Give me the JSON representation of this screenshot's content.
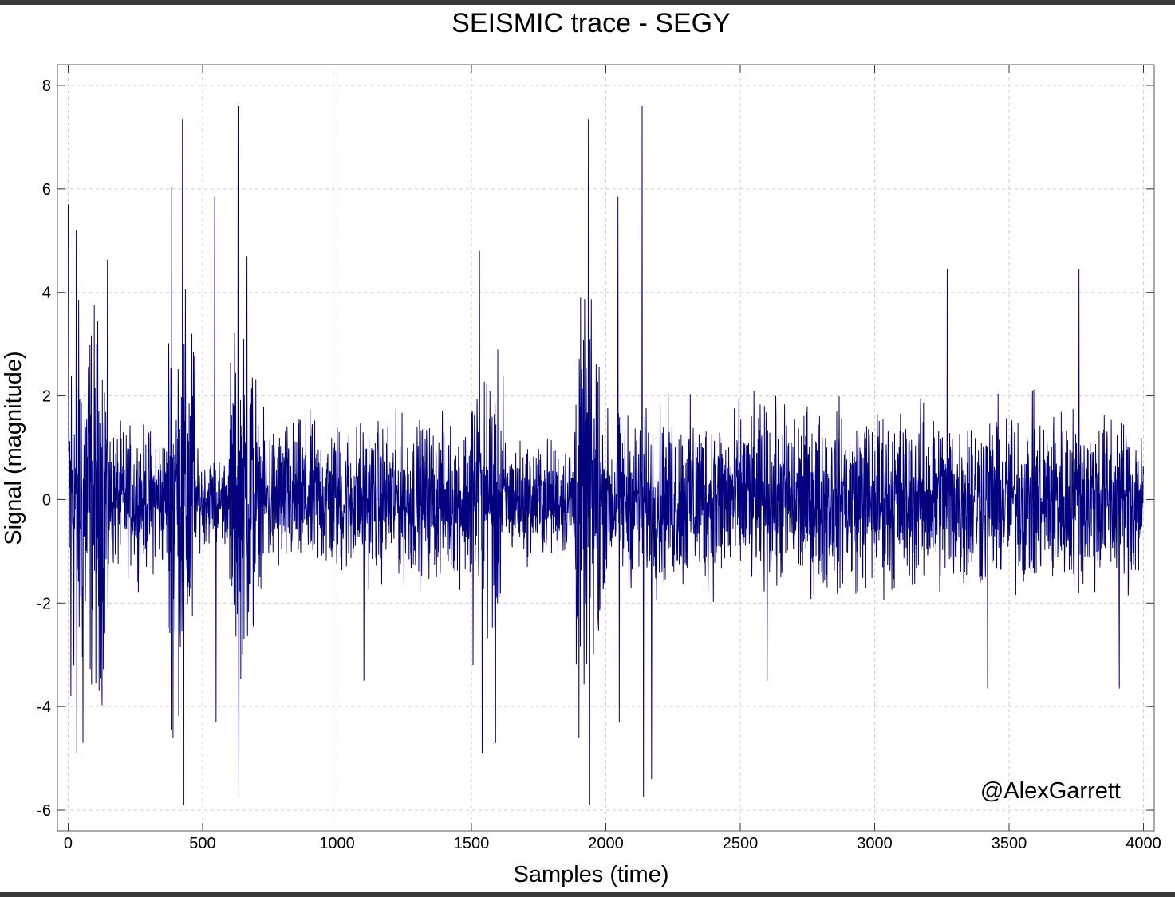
{
  "chart_data": {
    "type": "line",
    "title": "SEISMIC trace - SEGY",
    "xlabel": "Samples (time)",
    "ylabel": "Signal (magnitude)",
    "annotation": "@AlexGarrett",
    "xlim": [
      -40,
      4040
    ],
    "ylim": [
      -6.4,
      8.4
    ],
    "xticks": [
      0,
      500,
      1000,
      1500,
      2000,
      2500,
      3000,
      3500,
      4000
    ],
    "yticks": [
      -6,
      -4,
      -2,
      0,
      2,
      4,
      6,
      8
    ],
    "grid": true,
    "line_color": "#000080",
    "series": [
      {
        "sample_count": 4000,
        "peaks": [
          {
            "x": 0,
            "y": 5.7
          },
          {
            "x": 10,
            "y": -3.8
          },
          {
            "x": 30,
            "y": 5.2
          },
          {
            "x": 32,
            "y": -4.9
          },
          {
            "x": 55,
            "y": -4.7
          },
          {
            "x": 110,
            "y": 3.45
          },
          {
            "x": 115,
            "y": -3.7
          },
          {
            "x": 385,
            "y": 6.05
          },
          {
            "x": 390,
            "y": -4.6
          },
          {
            "x": 425,
            "y": -5.2
          },
          {
            "x": 425,
            "y": 7.35
          },
          {
            "x": 430,
            "y": -5.9
          },
          {
            "x": 545,
            "y": 5.85
          },
          {
            "x": 550,
            "y": -4.3
          },
          {
            "x": 632,
            "y": 7.6
          },
          {
            "x": 635,
            "y": -5.75
          },
          {
            "x": 665,
            "y": -5.4
          },
          {
            "x": 665,
            "y": 4.7
          },
          {
            "x": 1100,
            "y": 3.85
          },
          {
            "x": 1100,
            "y": -3.5
          },
          {
            "x": 1530,
            "y": 4.8
          },
          {
            "x": 1540,
            "y": -4.9
          },
          {
            "x": 1590,
            "y": -4.7
          },
          {
            "x": 1900,
            "y": -4.6
          },
          {
            "x": 1935,
            "y": 7.35
          },
          {
            "x": 1940,
            "y": -5.9
          },
          {
            "x": 2045,
            "y": 5.85
          },
          {
            "x": 2050,
            "y": -4.3
          },
          {
            "x": 2135,
            "y": 7.6
          },
          {
            "x": 2140,
            "y": -5.75
          },
          {
            "x": 2170,
            "y": -5.4
          },
          {
            "x": 2600,
            "y": 3.85
          },
          {
            "x": 2600,
            "y": -3.5
          },
          {
            "x": 3270,
            "y": 4.45
          },
          {
            "x": 3420,
            "y": -3.65
          },
          {
            "x": 3760,
            "y": 4.45
          },
          {
            "x": 3910,
            "y": -3.65
          },
          {
            "x": 4000,
            "y": 0.5
          }
        ],
        "envelope": [
          {
            "x_range": [
              0,
              150
            ],
            "amplitude": 3.0
          },
          {
            "x_range": [
              150,
              370
            ],
            "amplitude": 1.1
          },
          {
            "x_range": [
              370,
              470
            ],
            "amplitude": 3.0
          },
          {
            "x_range": [
              470,
              600
            ],
            "amplitude": 0.7
          },
          {
            "x_range": [
              600,
              700
            ],
            "amplitude": 2.5
          },
          {
            "x_range": [
              700,
              1490
            ],
            "amplitude": 1.2
          },
          {
            "x_range": [
              1490,
              1620
            ],
            "amplitude": 2.2
          },
          {
            "x_range": [
              1620,
              1880
            ],
            "amplitude": 0.9
          },
          {
            "x_range": [
              1880,
              1980
            ],
            "amplitude": 2.8
          },
          {
            "x_range": [
              1980,
              2180
            ],
            "amplitude": 1.3
          },
          {
            "x_range": [
              2180,
              4000
            ],
            "amplitude": 1.4
          }
        ]
      }
    ]
  }
}
